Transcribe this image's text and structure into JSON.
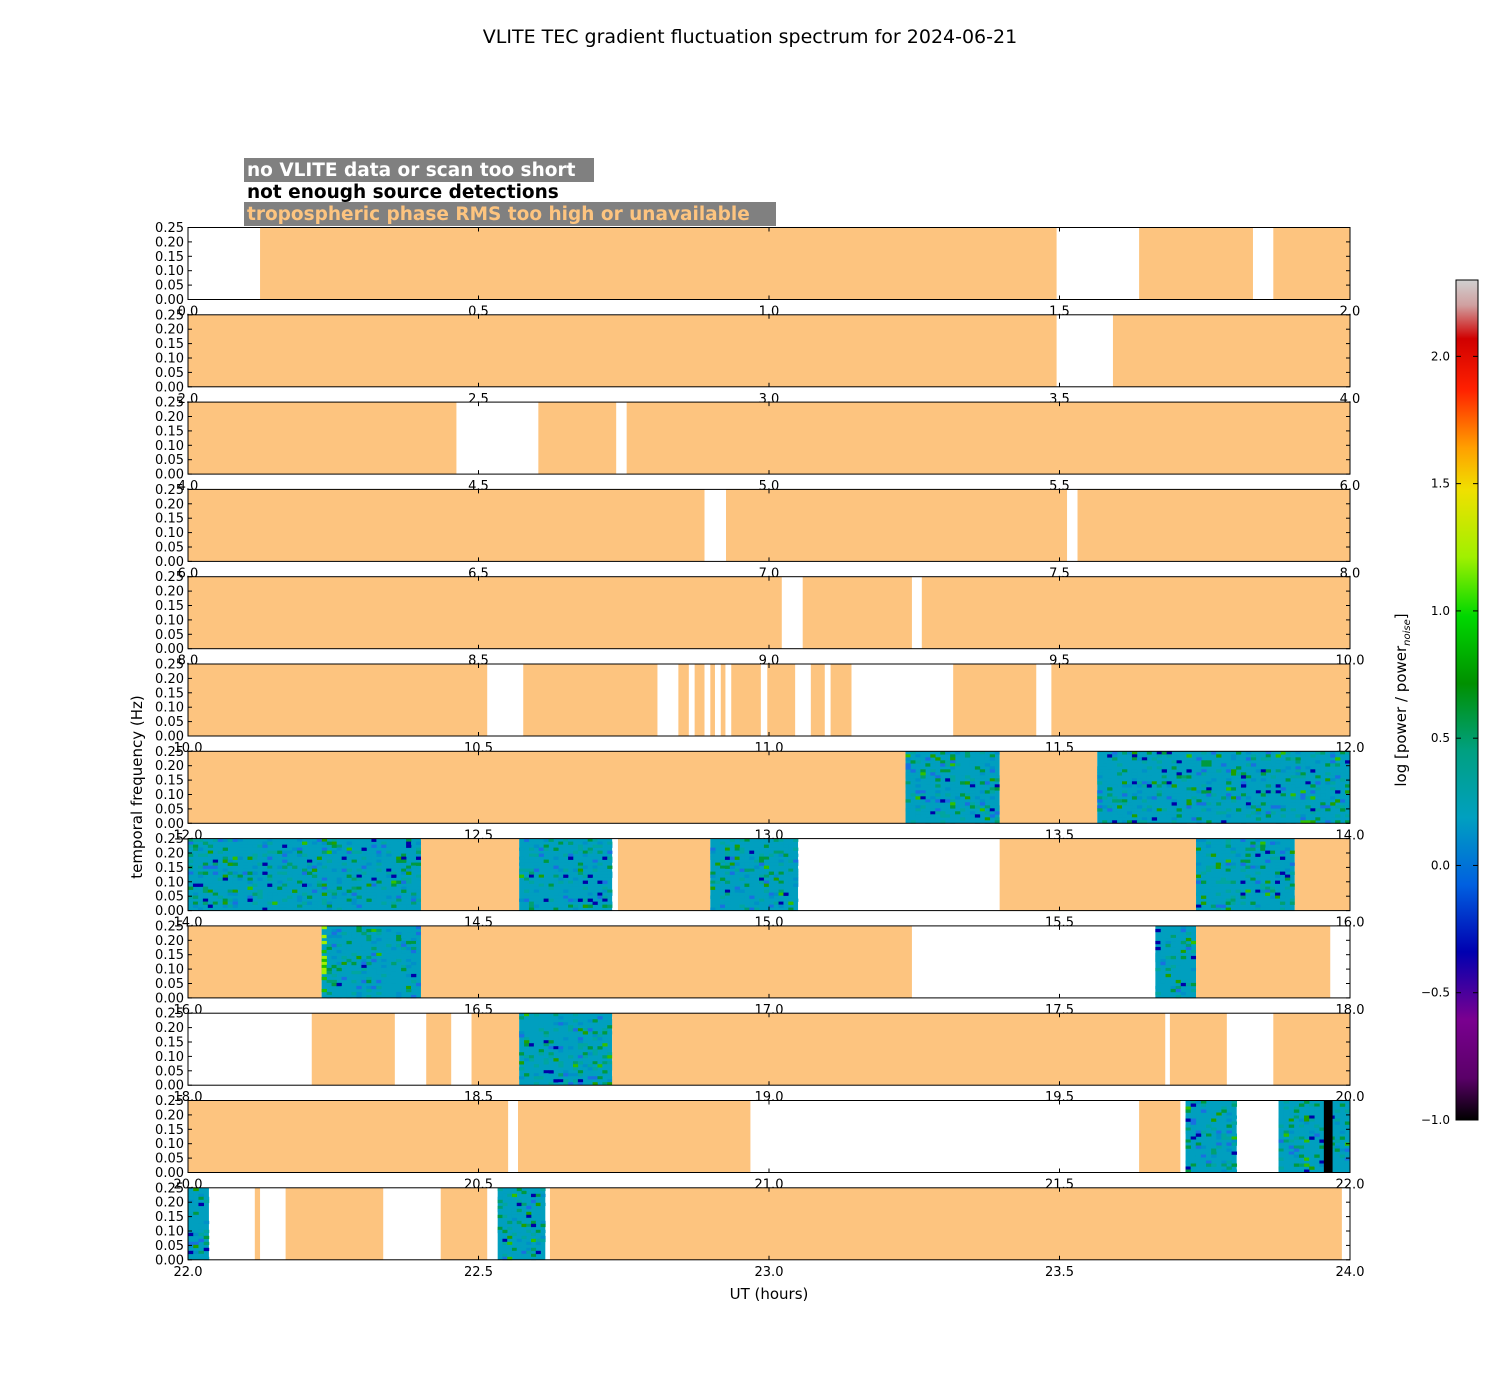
{
  "chart_data": {
    "type": "heatmap",
    "title": "VLITE TEC gradient fluctuation spectrum for 2024-06-21",
    "xlabel": "UT (hours)",
    "ylabel": "temporal frequency (Hz)",
    "colorbar": {
      "label_prefix": "log [power / power",
      "label_sub": "noise",
      "label_suffix": "]",
      "range": [
        -1.0,
        2.3
      ],
      "ticks": [
        "−1.0",
        "−0.5",
        "0.0",
        "0.5",
        "1.0",
        "1.5",
        "2.0"
      ]
    },
    "legend": [
      {
        "text": "no VLITE data or scan too short",
        "color": "#ffffff",
        "bg": "#808080"
      },
      {
        "text": "not enough source detections",
        "color": "#000000",
        "bg": "#ffffff"
      },
      {
        "text": "tropospheric phase RMS too high or unavailable",
        "color": "#fdc47f",
        "bg": "#808080"
      }
    ],
    "ylim": [
      0,
      0.25
    ],
    "y_ticks": [
      "0.00",
      "0.05",
      "0.10",
      "0.15",
      "0.20",
      "0.25"
    ],
    "flag_color": "#fdc47f",
    "rows": [
      {
        "x_ticks": [
          "0.0",
          "0.5",
          "1.0",
          "1.5",
          "2.0"
        ],
        "start": 0,
        "end": 2,
        "segments": [
          {
            "kind": "flag",
            "from": 0.124,
            "to": 1.495
          },
          {
            "kind": "flag",
            "from": 1.637,
            "to": 1.833
          },
          {
            "kind": "flag",
            "from": 1.868,
            "to": 2.0
          }
        ]
      },
      {
        "x_ticks": [
          "2.0",
          "2.5",
          "3.0",
          "3.5",
          "4.0"
        ],
        "start": 2,
        "end": 4,
        "segments": [
          {
            "kind": "flag",
            "from": 2.0,
            "to": 3.495
          },
          {
            "kind": "flag",
            "from": 3.592,
            "to": 4.0
          }
        ]
      },
      {
        "x_ticks": [
          "4.0",
          "4.5",
          "5.0",
          "5.5",
          "6.0"
        ],
        "start": 4,
        "end": 6,
        "segments": [
          {
            "kind": "flag",
            "from": 4.0,
            "to": 4.462
          },
          {
            "kind": "flag",
            "from": 4.603,
            "to": 4.737
          },
          {
            "kind": "flag",
            "from": 4.755,
            "to": 6.0
          }
        ]
      },
      {
        "x_ticks": [
          "6.0",
          "6.5",
          "7.0",
          "7.5",
          "8.0"
        ],
        "start": 6,
        "end": 8,
        "segments": [
          {
            "kind": "flag",
            "from": 6.0,
            "to": 6.889
          },
          {
            "kind": "flag",
            "from": 6.926,
            "to": 7.513
          },
          {
            "kind": "flag",
            "from": 7.531,
            "to": 8.0
          }
        ]
      },
      {
        "x_ticks": [
          "8.0",
          "8.5",
          "9.0",
          "9.5",
          "10.0"
        ],
        "start": 8,
        "end": 10,
        "segments": [
          {
            "kind": "flag",
            "from": 8.0,
            "to": 9.022
          },
          {
            "kind": "flag",
            "from": 9.058,
            "to": 9.246
          },
          {
            "kind": "flag",
            "from": 9.263,
            "to": 10.0
          }
        ]
      },
      {
        "x_ticks": [
          "10.0",
          "10.5",
          "11.0",
          "11.5",
          "12.0"
        ],
        "start": 10,
        "end": 12,
        "segments": [
          {
            "kind": "flag",
            "from": 10.0,
            "to": 10.515
          },
          {
            "kind": "flag",
            "from": 10.577,
            "to": 10.808
          },
          {
            "kind": "flag",
            "from": 10.844,
            "to": 10.862
          },
          {
            "kind": "flag",
            "from": 10.872,
            "to": 10.889
          },
          {
            "kind": "flag",
            "from": 10.899,
            "to": 10.907
          },
          {
            "kind": "flag",
            "from": 10.917,
            "to": 10.925
          },
          {
            "kind": "flag",
            "from": 10.935,
            "to": 10.986
          },
          {
            "kind": "flag",
            "from": 10.997,
            "to": 11.045
          },
          {
            "kind": "flag",
            "from": 11.072,
            "to": 11.096
          },
          {
            "kind": "flag",
            "from": 11.106,
            "to": 11.142
          },
          {
            "kind": "flag",
            "from": 11.317,
            "to": 11.46
          },
          {
            "kind": "flag",
            "from": 11.486,
            "to": 12.0
          }
        ]
      },
      {
        "x_ticks": [
          "12.0",
          "12.5",
          "13.0",
          "13.5",
          "14.0"
        ],
        "start": 12,
        "end": 14,
        "segments": [
          {
            "kind": "flag",
            "from": 12.0,
            "to": 13.235
          },
          {
            "kind": "spectrum",
            "from": 13.235,
            "to": 13.397
          },
          {
            "kind": "flag",
            "from": 13.397,
            "to": 13.565
          },
          {
            "kind": "spectrum",
            "from": 13.565,
            "to": 14.0
          }
        ]
      },
      {
        "x_ticks": [
          "14.0",
          "14.5",
          "15.0",
          "15.5",
          "16.0"
        ],
        "start": 14,
        "end": 16,
        "segments": [
          {
            "kind": "spectrum",
            "from": 14.0,
            "to": 14.401
          },
          {
            "kind": "flag",
            "from": 14.401,
            "to": 14.57
          },
          {
            "kind": "spectrum",
            "from": 14.57,
            "to": 14.73
          },
          {
            "kind": "flag",
            "from": 14.74,
            "to": 14.899
          },
          {
            "kind": "spectrum",
            "from": 14.899,
            "to": 15.05
          },
          {
            "kind": "flag",
            "from": 15.397,
            "to": 15.735
          },
          {
            "kind": "spectrum",
            "from": 15.735,
            "to": 15.905
          },
          {
            "kind": "flag",
            "from": 15.905,
            "to": 16.0
          }
        ]
      },
      {
        "x_ticks": [
          "16.0",
          "16.5",
          "17.0",
          "17.5",
          "18.0"
        ],
        "start": 16,
        "end": 18,
        "segments": [
          {
            "kind": "flag",
            "from": 16.0,
            "to": 16.23
          },
          {
            "kind": "spectrum",
            "from": 16.23,
            "to": 16.401,
            "hot_edge": true
          },
          {
            "kind": "flag",
            "from": 16.401,
            "to": 17.246
          },
          {
            "kind": "spectrum",
            "from": 17.665,
            "to": 17.735
          },
          {
            "kind": "flag",
            "from": 17.735,
            "to": 17.966
          }
        ]
      },
      {
        "x_ticks": [
          "18.0",
          "18.5",
          "19.0",
          "19.5",
          "20.0"
        ],
        "start": 18,
        "end": 20,
        "segments": [
          {
            "kind": "flag",
            "from": 18.213,
            "to": 18.356
          },
          {
            "kind": "flag",
            "from": 18.41,
            "to": 18.453
          },
          {
            "kind": "flag",
            "from": 18.488,
            "to": 18.57
          },
          {
            "kind": "spectrum",
            "from": 18.57,
            "to": 18.73
          },
          {
            "kind": "flag",
            "from": 18.73,
            "to": 19.682
          },
          {
            "kind": "flag",
            "from": 19.69,
            "to": 19.788
          },
          {
            "kind": "flag",
            "from": 19.868,
            "to": 20.0
          }
        ]
      },
      {
        "x_ticks": [
          "20.0",
          "20.5",
          "21.0",
          "21.5",
          "22.0"
        ],
        "start": 20,
        "end": 22,
        "segments": [
          {
            "kind": "flag",
            "from": 20.0,
            "to": 20.551
          },
          {
            "kind": "flag",
            "from": 20.568,
            "to": 20.968
          },
          {
            "kind": "flag",
            "from": 21.637,
            "to": 21.708
          },
          {
            "kind": "spectrum",
            "from": 21.717,
            "to": 21.805
          },
          {
            "kind": "spectrum",
            "from": 21.877,
            "to": 22.0,
            "black_band": [
              21.955,
              21.97
            ]
          }
        ]
      },
      {
        "x_ticks": [
          "22.0",
          "22.5",
          "23.0",
          "23.5",
          "24.0"
        ],
        "start": 22,
        "end": 24,
        "segments": [
          {
            "kind": "spectrum",
            "from": 22.0,
            "to": 22.036
          },
          {
            "kind": "flag",
            "from": 22.115,
            "to": 22.124
          },
          {
            "kind": "flag",
            "from": 22.168,
            "to": 22.336
          },
          {
            "kind": "flag",
            "from": 22.435,
            "to": 22.515
          },
          {
            "kind": "spectrum",
            "from": 22.533,
            "to": 22.615
          },
          {
            "kind": "flag",
            "from": 22.623,
            "to": 23.986
          }
        ]
      }
    ]
  }
}
